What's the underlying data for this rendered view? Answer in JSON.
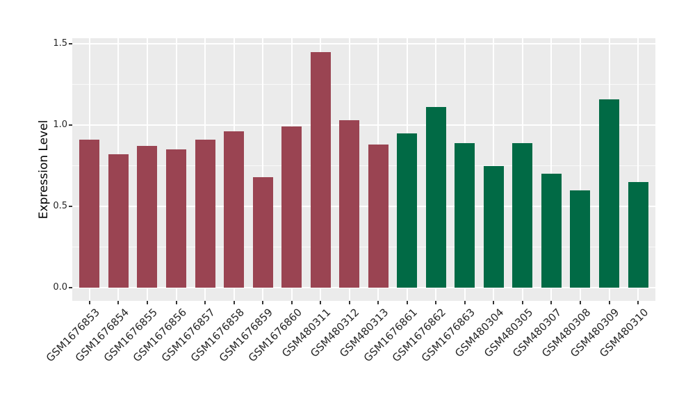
{
  "chart_data": {
    "type": "bar",
    "title": "",
    "xlabel": "",
    "ylabel": "Expression Level",
    "categories": [
      "GSM1676853",
      "GSM1676854",
      "GSM1676855",
      "GSM1676856",
      "GSM1676857",
      "GSM1676858",
      "GSM1676859",
      "GSM1676860",
      "GSM480311",
      "GSM480312",
      "GSM480313",
      "GSM1676861",
      "GSM1676862",
      "GSM1676863",
      "GSM480304",
      "GSM480305",
      "GSM480307",
      "GSM480308",
      "GSM480309",
      "GSM480310"
    ],
    "values": [
      0.91,
      0.82,
      0.87,
      0.85,
      0.91,
      0.96,
      0.68,
      0.99,
      1.45,
      1.03,
      0.88,
      0.95,
      1.11,
      0.89,
      0.75,
      0.89,
      0.7,
      0.6,
      1.16,
      0.65
    ],
    "groups": [
      0,
      0,
      0,
      0,
      0,
      0,
      0,
      0,
      0,
      0,
      0,
      1,
      1,
      1,
      1,
      1,
      1,
      1,
      1,
      1
    ],
    "group_colors": [
      "#9A4452",
      "#016A45"
    ],
    "ylim": [
      -0.08,
      1.53
    ],
    "y_major_ticks": [
      0,
      0.5,
      1,
      1.5
    ],
    "y_tick_labels": [
      "0.0",
      "0.5",
      "1.0",
      "1.5"
    ],
    "y_minor_ticks": [
      0.25,
      0.75,
      1.25
    ],
    "x_tick_rotation_deg": 45,
    "grid": "major-and-minor-white",
    "legend": "none"
  },
  "colors": {
    "figure_bg": "#FFFFFF",
    "panel_bg": "#EBEBEB",
    "gridline": "#FFFFFF",
    "tick_text": "#262626",
    "axis_title_text": "#000000",
    "tick_mark": "#333333"
  }
}
